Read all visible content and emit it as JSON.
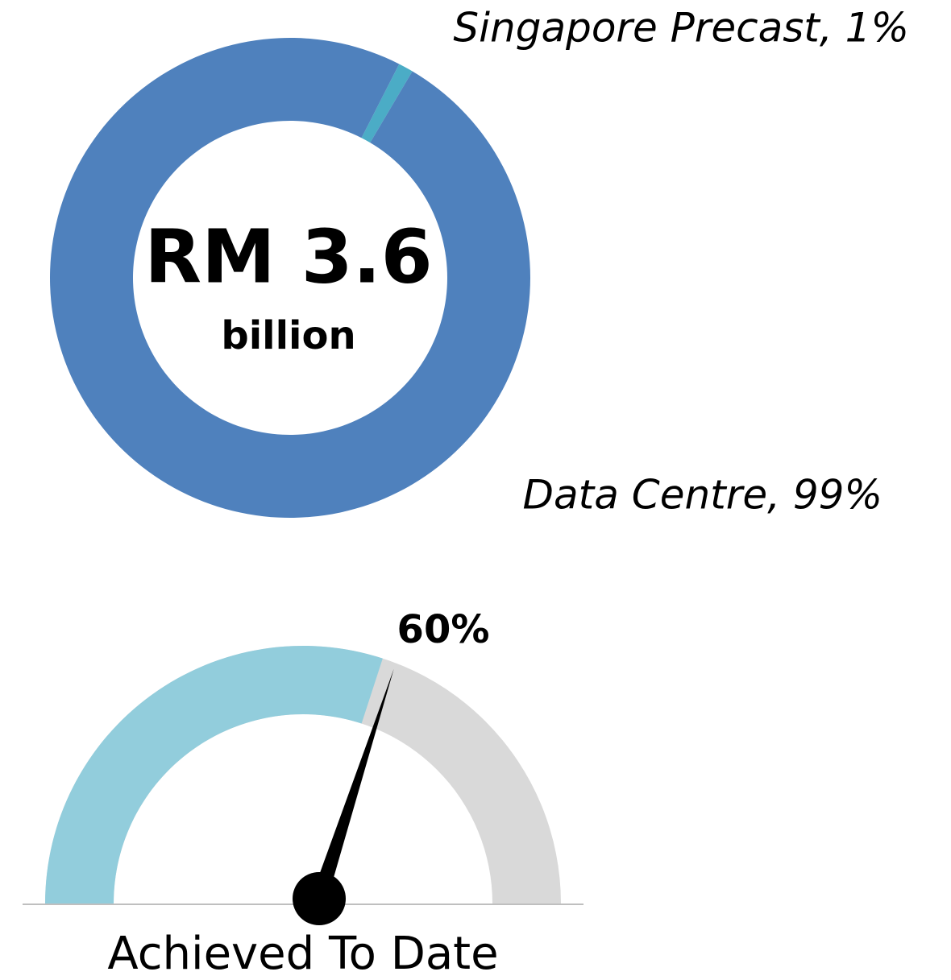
{
  "chart_data": [
    {
      "type": "donut",
      "categories": [
        "Singapore Precast",
        "Data Centre"
      ],
      "labels": [
        "Singapore Precast, 1%",
        "Data Centre, 99%"
      ],
      "values": [
        1,
        99
      ],
      "colors": [
        "#4bacc6",
        "#4f81bd"
      ],
      "center_title": "RM 3.6",
      "center_subtitle": "billion"
    },
    {
      "type": "gauge",
      "value": 60,
      "value_label": "60%",
      "label": "Achieved To Date",
      "range": [
        0,
        100
      ],
      "fill_color": "#92cddc",
      "track_color": "#d9d9d9",
      "needle_color": "#000000"
    }
  ]
}
